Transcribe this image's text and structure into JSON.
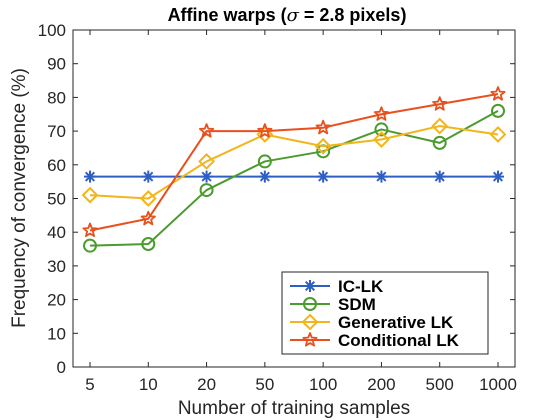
{
  "chart_data": {
    "type": "line",
    "title": "Affine warps (σ = 2.8 pixels)",
    "title_parts": {
      "prefix": "Affine warps (",
      "symbol": "σ",
      "suffix": " = 2.8 pixels)"
    },
    "xlabel": "Number of training samples",
    "ylabel": "Frequency of convergence (%)",
    "categories": [
      "5",
      "10",
      "20",
      "50",
      "100",
      "200",
      "500",
      "1000"
    ],
    "ylim": [
      0,
      100
    ],
    "yticks": [
      0,
      10,
      20,
      30,
      40,
      50,
      60,
      70,
      80,
      90,
      100
    ],
    "grid": false,
    "legend_position": "bottom-right",
    "series": [
      {
        "name": "IC-LK",
        "color": "#2f5fc4",
        "marker": "asterisk",
        "values": [
          56.5,
          56.5,
          56.5,
          56.5,
          56.5,
          56.5,
          56.5,
          56.5
        ]
      },
      {
        "name": "SDM",
        "color": "#4b9b2f",
        "marker": "circle",
        "values": [
          36,
          36.5,
          52.5,
          61,
          64,
          70.5,
          66.5,
          76
        ]
      },
      {
        "name": "Generative LK",
        "color": "#f2b51b",
        "marker": "diamond",
        "values": [
          51,
          50,
          61,
          69,
          65.5,
          67.5,
          71.5,
          69
        ]
      },
      {
        "name": "Conditional LK",
        "color": "#e8501e",
        "marker": "star",
        "values": [
          40.5,
          44,
          70,
          70,
          71,
          75,
          78,
          81
        ]
      }
    ]
  }
}
